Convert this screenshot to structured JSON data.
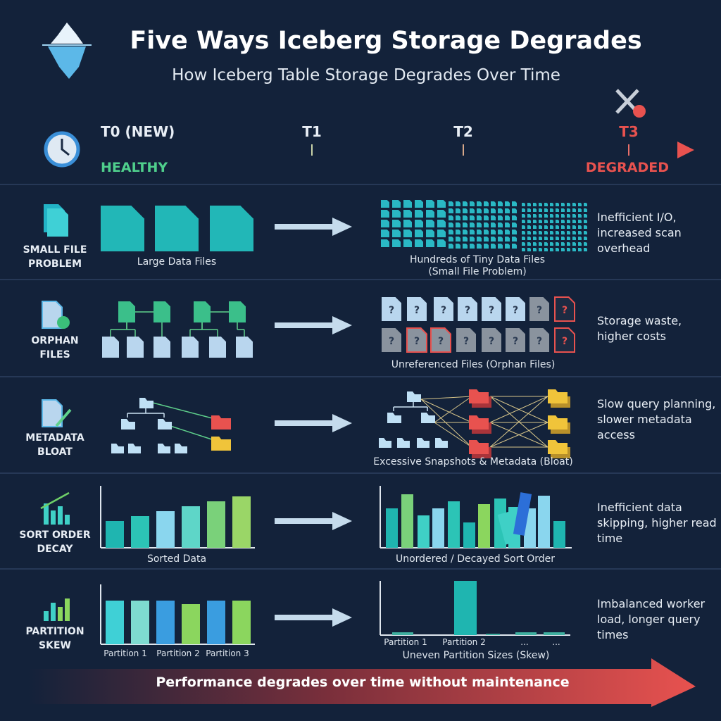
{
  "header": {
    "title": "Five Ways Iceberg Storage Degrades",
    "subtitle": "How Iceberg Table Storage Degrades Over Time"
  },
  "timeline": {
    "stages": [
      "T0 (NEW)",
      "T1",
      "T2",
      "T3"
    ],
    "start_label": "HEALTHY",
    "end_label": "DEGRADED"
  },
  "rows": [
    {
      "name": "SMALL FILE PROBLEM",
      "before": "Large Data Files",
      "after": "Hundreds of Tiny Data Files (Small File Problem)",
      "impact": "Inefficient I/O, increased scan overhead"
    },
    {
      "name": "ORPHAN FILES",
      "marker": "?",
      "after": "Unreferenced Files (Orphan Files)",
      "impact": "Storage waste, higher costs"
    },
    {
      "name": "METADATA BLOAT",
      "after": "Excessive Snapshots & Metadata (Bloat)",
      "impact": "Slow query planning, slower metadata access"
    },
    {
      "name": "SORT ORDER DECAY",
      "before": "Sorted Data",
      "after": "Unordered / Decayed Sort Order",
      "impact": "Inefficient data skipping, higher read time"
    },
    {
      "name": "PARTITION SKEW",
      "before_partitions": [
        "Partition 1",
        "Partition 2",
        "Partition 3"
      ],
      "after_partitions": [
        "Partition 1",
        "Partition 2",
        "...",
        "..."
      ],
      "after": "Uneven Partition Sizes (Skew)",
      "impact": "Imbalanced worker load, longer query times"
    }
  ],
  "footer": "Performance degrades over time without maintenance"
}
